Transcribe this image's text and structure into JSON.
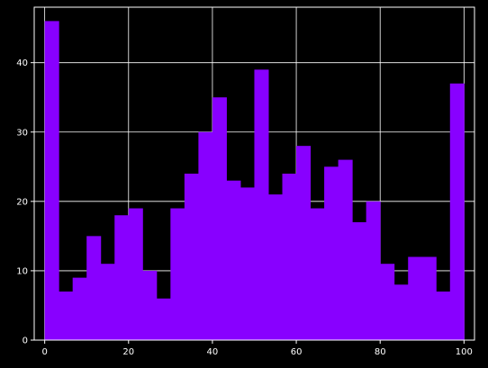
{
  "chart_data": {
    "type": "bar",
    "title": "",
    "xlabel": "",
    "ylabel": "",
    "bin_start": 0,
    "bin_width": 3.333,
    "values": [
      46,
      7,
      9,
      15,
      11,
      18,
      19,
      10,
      6,
      19,
      24,
      30,
      35,
      23,
      22,
      39,
      21,
      24,
      28,
      19,
      25,
      26,
      17,
      20,
      11,
      8,
      12,
      12,
      7,
      37
    ],
    "xlim": [
      -2.5,
      102.5
    ],
    "ylim": [
      0,
      48
    ],
    "xticks": [
      0,
      20,
      40,
      60,
      80,
      100
    ],
    "yticks": [
      0,
      10,
      20,
      30,
      40
    ],
    "grid": true,
    "colors": {
      "bar": "#8800ff",
      "background": "#000000",
      "grid": "#ffffff",
      "axis": "#ffffff",
      "text": "#ffffff"
    }
  }
}
